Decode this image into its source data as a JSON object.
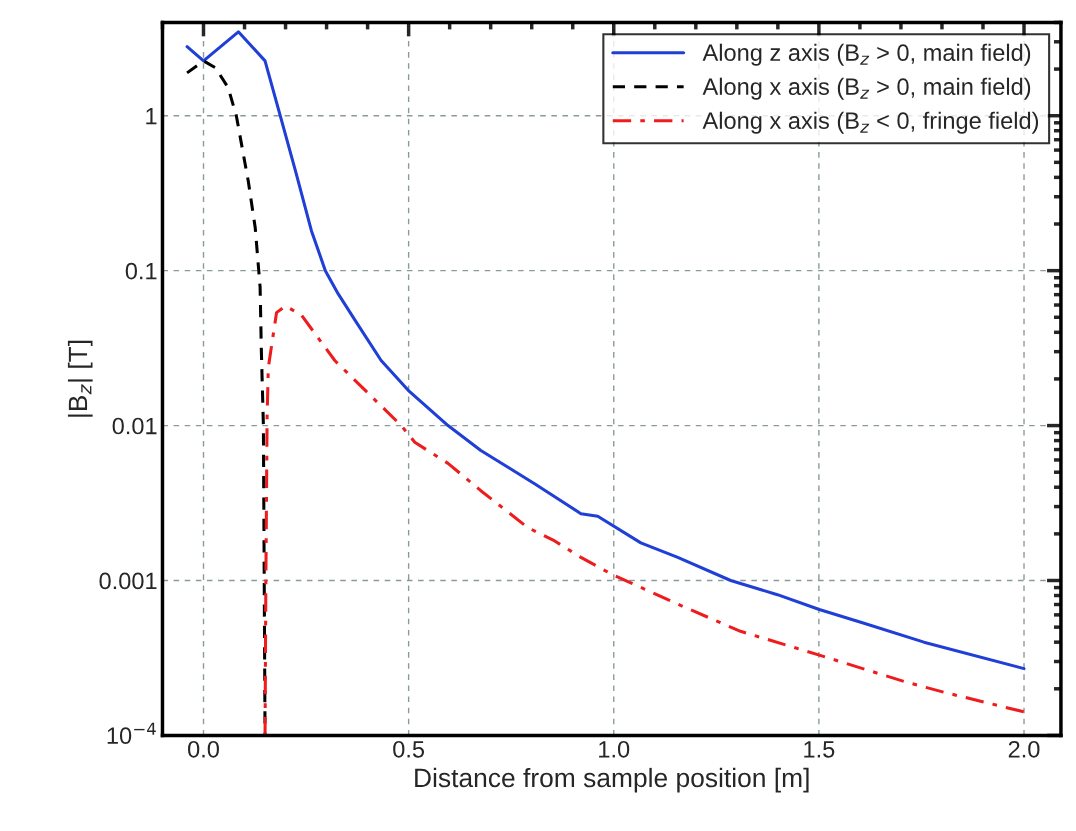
{
  "chart_data": {
    "type": "line",
    "xlabel": "Distance from sample position [m]",
    "ylabel": "|B$_{z}$| [T]",
    "xlim": [
      -0.1,
      2.09
    ],
    "ylim": [
      0.0001,
      4
    ],
    "log": "y",
    "grid": true,
    "legend": "top right",
    "xticks": [
      {
        "value": 0,
        "label": "0.0"
      },
      0.5,
      {
        "value": 1,
        "label": "1.0"
      },
      1.5,
      {
        "value": 2,
        "label": "2.0"
      }
    ],
    "yticks": [
      {
        "value": 0.0001,
        "label": "10$^{−4}$"
      },
      0.001,
      0.01,
      0.1,
      1
    ],
    "series": [
      {
        "name": "Along z axis (B$_{z}$ > 0, main field)",
        "color": "#1f3fd6",
        "line_style": "solid",
        "x": [
          -0.04,
          0.0,
          0.085,
          0.15,
          0.187,
          0.224,
          0.263,
          0.297,
          0.328,
          0.37,
          0.433,
          0.499,
          0.596,
          0.676,
          0.808,
          0.92,
          0.961,
          1.066,
          1.156,
          1.285,
          1.399,
          1.501,
          1.61,
          1.756,
          2.0
        ],
        "values": [
          2.79,
          2.26,
          3.48,
          2.26,
          1.0,
          0.442,
          0.181,
          0.1,
          0.071,
          0.0476,
          0.0263,
          0.0169,
          0.01,
          0.0069,
          0.0042,
          0.0027,
          0.0026,
          0.00175,
          0.00141,
          0.001,
          0.00081,
          0.00065,
          0.00053,
          0.0004,
          0.00027
        ]
      },
      {
        "name": "Along x axis (B$_{z}$ > 0, main field)",
        "color": "#000000",
        "line_style": "dashed",
        "x": [
          -0.04,
          0.0,
          0.029,
          0.06,
          0.08,
          0.109,
          0.126,
          0.138,
          0.141,
          0.146,
          0.148,
          0.15
        ],
        "values": [
          1.89,
          2.26,
          2.04,
          1.52,
          1.0,
          0.38,
          0.19,
          0.078,
          0.0305,
          0.01,
          0.001,
          0.0001
        ]
      },
      {
        "name": "Along x axis (B$_{z}$ < 0, fringe field)",
        "color": "#ee1c1c",
        "line_style": "dashdot",
        "x": [
          0.15,
          0.152,
          0.155,
          0.158,
          0.178,
          0.2,
          0.239,
          0.32,
          0.402,
          0.482,
          0.515,
          0.596,
          0.676,
          0.79,
          0.856,
          0.92,
          1.0,
          1.04,
          1.163,
          1.309,
          1.501,
          1.715,
          1.805,
          2.0
        ],
        "values": [
          0.0001,
          0.001,
          0.0113,
          0.0237,
          0.0536,
          0.0592,
          0.0515,
          0.0263,
          0.0161,
          0.01,
          0.0078,
          0.0057,
          0.0038,
          0.0022,
          0.0018,
          0.00141,
          0.00108,
          0.00097,
          0.00069,
          0.00047,
          0.00033,
          0.00022,
          0.00019,
          0.000142
        ]
      }
    ]
  }
}
